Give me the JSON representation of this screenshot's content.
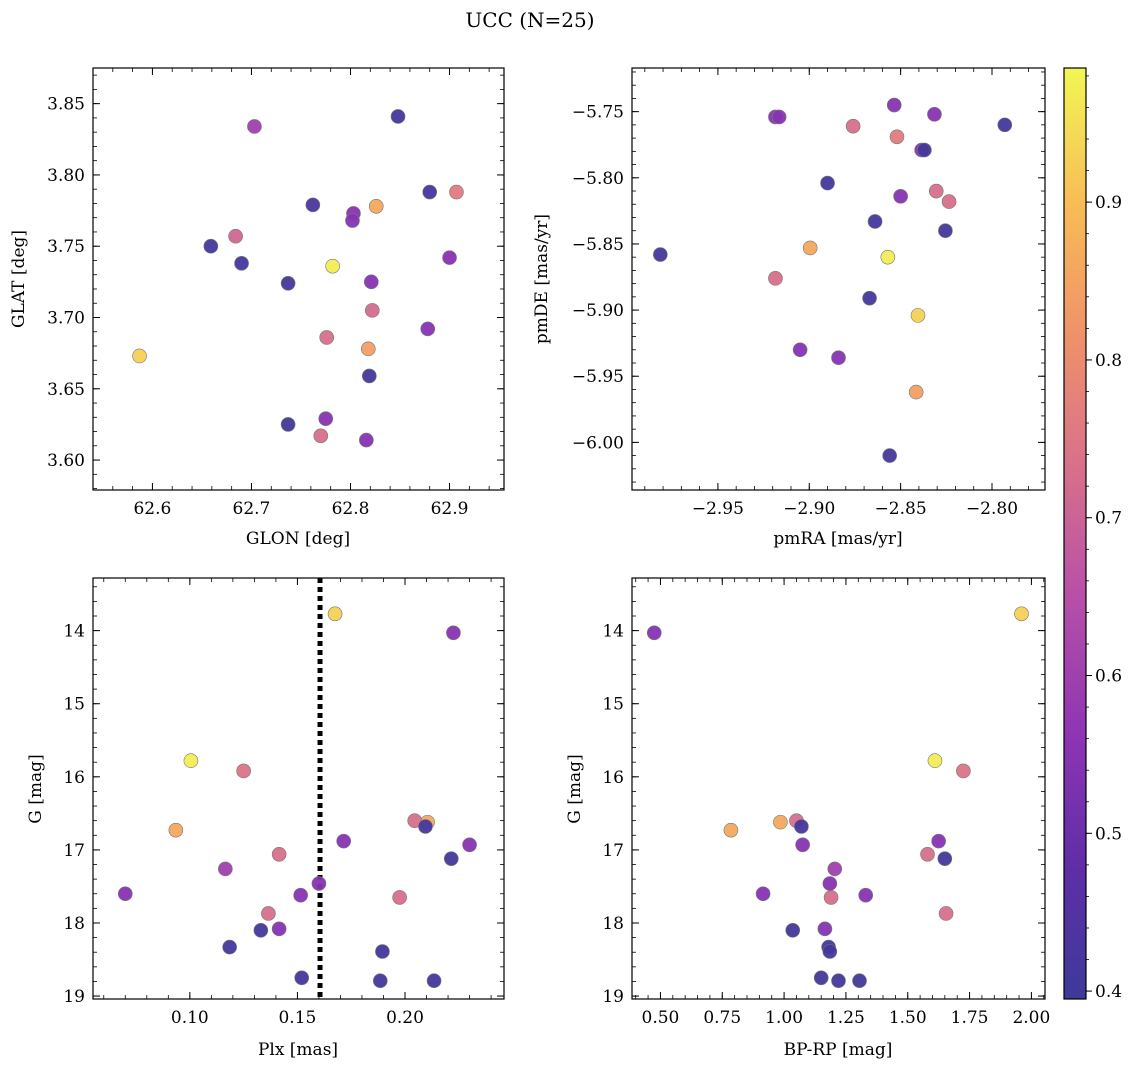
{
  "figure_title": "UCC (N=25)",
  "colorbar": {
    "range": [
      0.395,
      0.985
    ],
    "ticks": [
      0.4,
      0.5,
      0.6,
      0.7,
      0.8,
      0.9
    ],
    "colormap": "plasma (truncated)",
    "stops": [
      "#3e3a9a",
      "#5f2ea8",
      "#8f35b4",
      "#b64fa8",
      "#d8708b",
      "#ef9269",
      "#f9bd56",
      "#f0f755"
    ]
  },
  "chart_data": [
    {
      "id": "glon-glat",
      "type": "scatter",
      "xlabel": "GLON [deg]",
      "ylabel": "GLAT [deg]",
      "xlim": [
        62.54,
        62.955
      ],
      "ylim": [
        3.579,
        3.875
      ],
      "xticks": [
        62.6,
        62.7,
        62.8,
        62.9
      ],
      "xticklabels": [
        "62.6",
        "62.7",
        "62.8",
        "62.9"
      ],
      "yticks": [
        3.6,
        3.65,
        3.7,
        3.75,
        3.8,
        3.85
      ],
      "yticklabels": [
        "3.60",
        "3.65",
        "3.70",
        "3.75",
        "3.80",
        "3.85"
      ],
      "x": [
        62.848,
        62.703,
        62.762,
        62.88,
        62.907,
        62.826,
        62.803,
        62.802,
        62.684,
        62.659,
        62.69,
        62.782,
        62.737,
        62.821,
        62.9,
        62.822,
        62.776,
        62.878,
        62.818,
        62.587,
        62.819,
        62.775,
        62.737,
        62.77,
        62.816
      ],
      "y": [
        3.841,
        3.834,
        3.779,
        3.788,
        3.788,
        3.778,
        3.773,
        3.768,
        3.757,
        3.75,
        3.738,
        3.736,
        3.724,
        3.725,
        3.742,
        3.705,
        3.686,
        3.692,
        3.678,
        3.673,
        3.659,
        3.629,
        3.625,
        3.617,
        3.614
      ],
      "color_values": [
        0.41,
        0.6,
        0.43,
        0.42,
        0.76,
        0.86,
        0.55,
        0.55,
        0.71,
        0.41,
        0.41,
        0.97,
        0.41,
        0.55,
        0.55,
        0.72,
        0.73,
        0.55,
        0.84,
        0.93,
        0.41,
        0.55,
        0.41,
        0.73,
        0.55
      ]
    },
    {
      "id": "pmra-pmde",
      "type": "scatter",
      "xlabel": "pmRA [mas/yr]",
      "ylabel": "pmDE [mas/yr]",
      "xlim": [
        -2.997,
        -2.771
      ],
      "ylim": [
        -6.036,
        -5.717
      ],
      "xticks": [
        -2.95,
        -2.9,
        -2.85,
        -2.8
      ],
      "xticklabels": [
        "−2.95",
        "−2.90",
        "−2.85",
        "−2.80"
      ],
      "yticks": [
        -5.75,
        -5.8,
        -5.85,
        -5.9,
        -5.95,
        -6.0
      ],
      "yticklabels": [
        "−5.75",
        "−5.80",
        "−5.85",
        "−5.90",
        "−5.95",
        "−6.00"
      ],
      "x": [
        -2.8535,
        -2.8315,
        -2.9185,
        -2.9165,
        -2.793,
        -2.876,
        -2.852,
        -2.8385,
        -2.837,
        -2.89,
        -2.8305,
        -2.85,
        -2.8235,
        -2.864,
        -2.8255,
        -2.9815,
        -2.8995,
        -2.857,
        -2.9185,
        -2.867,
        -2.8405,
        -2.905,
        -2.884,
        -2.8415,
        -2.856
      ],
      "y": [
        -5.745,
        -5.752,
        -5.754,
        -5.754,
        -5.76,
        -5.761,
        -5.769,
        -5.779,
        -5.779,
        -5.804,
        -5.81,
        -5.814,
        -5.818,
        -5.833,
        -5.84,
        -5.858,
        -5.853,
        -5.86,
        -5.876,
        -5.891,
        -5.904,
        -5.93,
        -5.936,
        -5.962,
        -6.01
      ],
      "color_values": [
        0.55,
        0.55,
        0.55,
        0.55,
        0.41,
        0.73,
        0.76,
        0.55,
        0.41,
        0.41,
        0.73,
        0.55,
        0.73,
        0.41,
        0.41,
        0.41,
        0.86,
        0.97,
        0.73,
        0.41,
        0.93,
        0.55,
        0.55,
        0.84,
        0.41
      ]
    },
    {
      "id": "plx-g",
      "type": "scatter",
      "xlabel": "Plx [mas]",
      "ylabel": "G [mag]",
      "xlim": [
        0.055,
        0.246
      ],
      "ylim": [
        19.04,
        13.28
      ],
      "xticks": [
        0.1,
        0.15,
        0.2
      ],
      "xticklabels": [
        "0.10",
        "0.15",
        "0.20"
      ],
      "yticks": [
        14,
        15,
        16,
        17,
        18,
        19
      ],
      "yticklabels": [
        "14",
        "15",
        "16",
        "17",
        "18",
        "19"
      ],
      "vline": 0.1605,
      "x": [
        0.1675,
        0.2225,
        0.1005,
        0.125,
        0.0935,
        0.2045,
        0.2105,
        0.2095,
        0.1415,
        0.23,
        0.1715,
        0.2215,
        0.1165,
        0.07,
        0.1515,
        0.1975,
        0.16,
        0.1365,
        0.1415,
        0.133,
        0.1185,
        0.1895,
        0.152,
        0.1885,
        0.2135
      ],
      "y": [
        13.77,
        14.03,
        15.78,
        15.92,
        16.73,
        16.6,
        16.62,
        16.68,
        17.06,
        16.93,
        16.88,
        17.12,
        17.26,
        17.6,
        17.62,
        17.65,
        17.46,
        17.87,
        18.08,
        18.1,
        18.33,
        18.39,
        18.75,
        18.79,
        18.79
      ],
      "color_values": [
        0.93,
        0.55,
        0.97,
        0.74,
        0.86,
        0.73,
        0.86,
        0.41,
        0.73,
        0.55,
        0.55,
        0.41,
        0.6,
        0.55,
        0.55,
        0.73,
        0.55,
        0.73,
        0.55,
        0.41,
        0.41,
        0.41,
        0.41,
        0.41,
        0.41
      ]
    },
    {
      "id": "bprp-g",
      "type": "scatter",
      "xlabel": "BP-RP [mag]",
      "ylabel": "G [mag]",
      "xlim": [
        0.385,
        2.055
      ],
      "ylim": [
        19.04,
        13.28
      ],
      "xticks": [
        0.5,
        0.75,
        1.0,
        1.25,
        1.5,
        1.75,
        2.0
      ],
      "xticklabels": [
        "0.50",
        "0.75",
        "1.00",
        "1.25",
        "1.50",
        "1.75",
        "2.00"
      ],
      "yticks": [
        14,
        15,
        16,
        17,
        18,
        19
      ],
      "yticklabels": [
        "14",
        "15",
        "16",
        "17",
        "18",
        "19"
      ],
      "x": [
        1.96,
        0.475,
        1.61,
        1.725,
        0.785,
        0.985,
        1.05,
        1.07,
        1.58,
        1.075,
        1.625,
        1.65,
        1.205,
        0.915,
        1.33,
        1.19,
        1.185,
        1.655,
        1.165,
        1.035,
        1.18,
        1.185,
        1.15,
        1.22,
        1.305
      ],
      "y": [
        13.77,
        14.03,
        15.78,
        15.92,
        16.73,
        16.62,
        16.6,
        16.68,
        17.06,
        16.93,
        16.88,
        17.12,
        17.26,
        17.6,
        17.62,
        17.65,
        17.46,
        17.87,
        18.08,
        18.1,
        18.33,
        18.39,
        18.75,
        18.79,
        18.79
      ],
      "color_values": [
        0.93,
        0.55,
        0.97,
        0.74,
        0.86,
        0.86,
        0.73,
        0.41,
        0.73,
        0.55,
        0.55,
        0.41,
        0.6,
        0.55,
        0.55,
        0.73,
        0.55,
        0.73,
        0.55,
        0.41,
        0.41,
        0.41,
        0.41,
        0.41,
        0.41
      ]
    }
  ]
}
